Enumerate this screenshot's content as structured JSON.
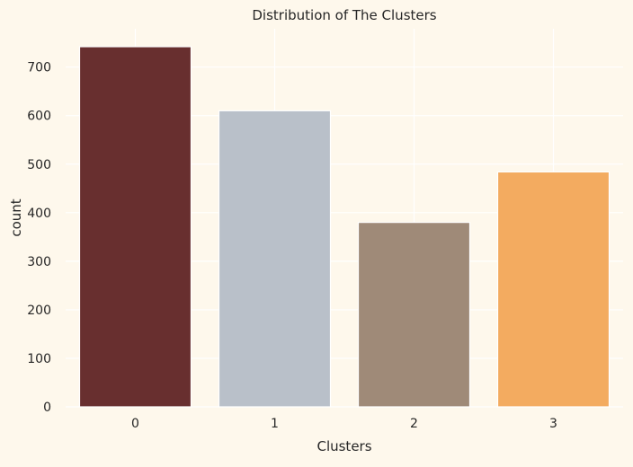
{
  "chart_data": {
    "type": "bar",
    "title": "Distribution of The Clusters",
    "xlabel": "Clusters",
    "ylabel": "count",
    "categories": [
      "0",
      "1",
      "2",
      "3"
    ],
    "values": [
      742,
      610,
      380,
      484
    ],
    "bar_colors": [
      "#682F2F",
      "#B9C0C9",
      "#9F8A78",
      "#F3AB60"
    ],
    "ylim": [
      0,
      779
    ],
    "yticks": [
      0,
      100,
      200,
      300,
      400,
      500,
      600,
      700
    ],
    "grid": true,
    "legend": "none",
    "background_color": "#FEF8EC"
  }
}
